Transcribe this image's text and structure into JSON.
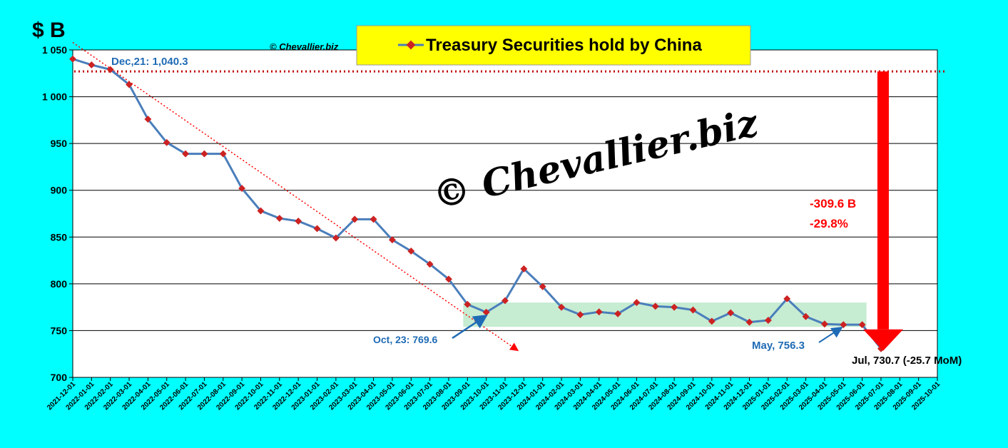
{
  "colors": {
    "background": "#00ffff",
    "plot_area": "#ffffff",
    "series_line": "#4a7ebb",
    "marker": "#cc2222",
    "trend": "#ff0000",
    "arrow": "#ff0000",
    "label_blue": "#1f6bb5",
    "band": "#c6ecd2",
    "title_box": "#ffff00"
  },
  "copyright_small": "© Chevallier.biz",
  "watermark": "© Chevallier.biz",
  "chart_data": {
    "type": "line",
    "title": "Treasury Securities hold by China",
    "ylabel": "$ B",
    "xlabel": "",
    "ylim": [
      700,
      1050
    ],
    "y_ticks": [
      "700",
      "750",
      "800",
      "850",
      "900",
      "950",
      "1 000",
      "1 050"
    ],
    "y_tick_values": [
      700,
      750,
      800,
      850,
      900,
      950,
      1000,
      1050
    ],
    "grid": true,
    "legend": "top-center",
    "categories": [
      "2021-12-01",
      "2022-01-01",
      "2022-02-01",
      "2022-03-01",
      "2022-04-01",
      "2022-05-01",
      "2022-06-01",
      "2022-07-01",
      "2022-08-01",
      "2022-09-01",
      "2022-10-01",
      "2022-11-01",
      "2022-12-01",
      "2023-01-01",
      "2023-02-01",
      "2023-03-01",
      "2023-04-01",
      "2023-05-01",
      "2023-06-01",
      "2023-07-01",
      "2023-08-01",
      "2023-09-01",
      "2023-10-01",
      "2023-11-01",
      "2023-12-01",
      "2024-01-01",
      "2024-02-01",
      "2024-03-01",
      "2024-04-01",
      "2024-05-01",
      "2024-06-01",
      "2024-07-01",
      "2024-08-01",
      "2024-09-01",
      "2024-10-01",
      "2024-11-01",
      "2024-12-01",
      "2025-01-01",
      "2025-02-01",
      "2025-03-01",
      "2025-04-01",
      "2025-05-01",
      "2025-06-01",
      "2025-07-01",
      "2025-08-01",
      "2025-09-01",
      "2025-10-01"
    ],
    "series": [
      {
        "name": "Treasury Securities hold by China",
        "values": [
          1040.3,
          1034,
          1029,
          1013,
          976,
          951,
          939,
          939,
          939,
          902,
          878,
          870,
          867,
          859,
          849,
          869,
          869,
          847,
          835,
          821,
          805,
          778,
          769.6,
          782,
          816,
          797,
          775,
          767,
          770,
          768,
          780,
          776,
          775,
          772,
          760,
          769,
          759,
          761,
          784,
          765,
          757,
          756.3,
          756.3,
          730.7,
          null,
          null,
          null
        ]
      }
    ],
    "reference_line": {
      "value": 1027
    },
    "trend_line": {
      "from": [
        "2021-12-01",
        1058
      ],
      "to": [
        "2024-01-01",
        737
      ]
    },
    "band": {
      "from": "2023-09-01",
      "to": "2025-06-01",
      "low": 754,
      "high": 780
    },
    "decline": {
      "amount": "-309.6 B",
      "percent": "-29.8%",
      "from_value": 1027,
      "to_value": 730.7,
      "category": "2025-07-01"
    },
    "annotations": [
      {
        "id": "dec21",
        "text": "Dec,21: 1,040.3"
      },
      {
        "id": "oct23",
        "text": "Oct, 23: 769.6"
      },
      {
        "id": "may25",
        "text": "May, 756.3"
      },
      {
        "id": "jul25",
        "text": "Jul, 730.7 (-25.7 MoM)"
      }
    ]
  }
}
